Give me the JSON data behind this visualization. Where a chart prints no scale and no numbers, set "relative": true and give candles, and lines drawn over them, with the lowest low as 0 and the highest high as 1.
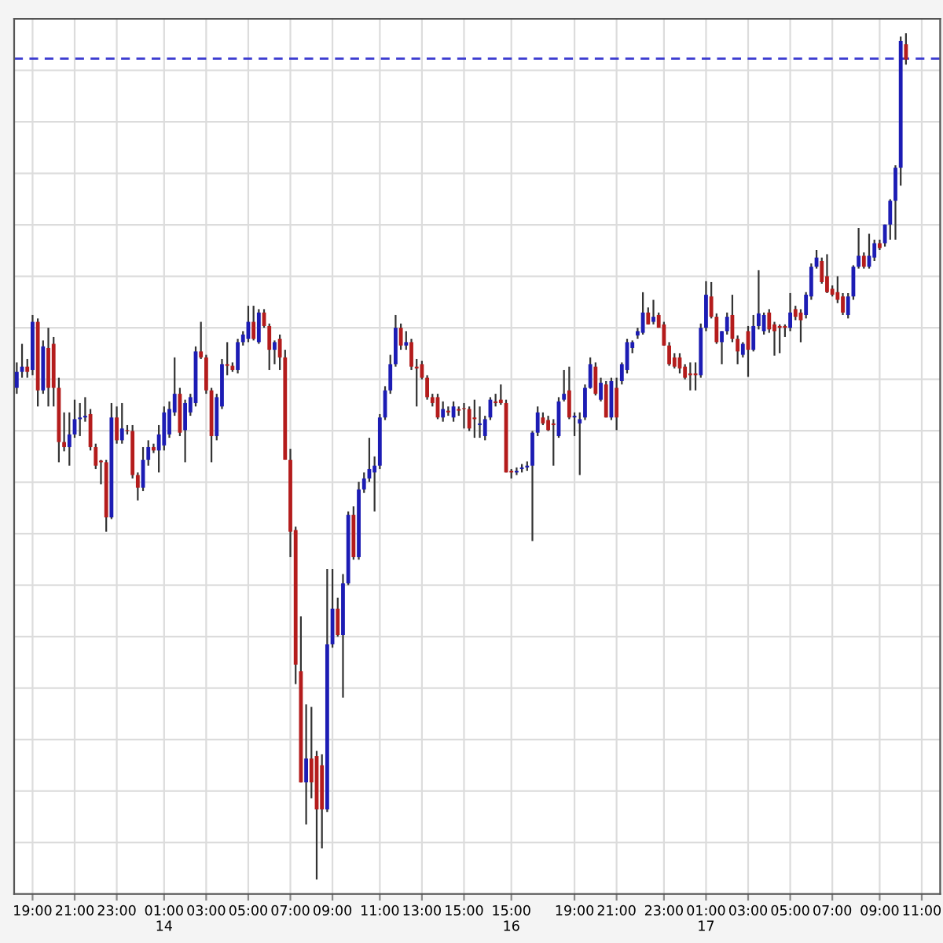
{
  "chart_data": {
    "type": "candlestick",
    "relative": true,
    "grid": true,
    "tick_labels": "x",
    "categories": [
      null,
      null,
      null,
      "19:00",
      null,
      null,
      null,
      null,
      null,
      null,
      null,
      "21:00",
      null,
      null,
      null,
      null,
      null,
      null,
      null,
      "23:00",
      null,
      null,
      null,
      null,
      null,
      null,
      null,
      null,
      "01:00\n14",
      null,
      null,
      null,
      null,
      null,
      null,
      null,
      "03:00",
      null,
      null,
      null,
      null,
      null,
      null,
      null,
      "05:00",
      null,
      null,
      null,
      null,
      null,
      null,
      null,
      "07:00",
      null,
      null,
      null,
      null,
      null,
      null,
      null,
      "09:00",
      null,
      null,
      null,
      null,
      null,
      null,
      null,
      null,
      "11:00",
      null,
      null,
      null,
      null,
      null,
      null,
      null,
      "13:00",
      null,
      null,
      null,
      null,
      null,
      null,
      null,
      "15:00",
      null,
      null,
      null,
      null,
      null,
      null,
      null,
      null,
      "15:00\n16",
      null,
      null,
      null,
      null,
      null,
      null,
      null,
      null,
      null,
      null,
      null,
      "19:00",
      null,
      null,
      null,
      null,
      null,
      null,
      null,
      "21:00",
      null,
      null,
      null,
      null,
      null,
      null,
      null,
      null,
      "23:00",
      null,
      null,
      null,
      null,
      null,
      null,
      null,
      "01:00\n17",
      null,
      null,
      null,
      null,
      null,
      null,
      null,
      "03:00",
      null,
      null,
      null,
      null,
      null,
      null,
      null,
      "05:00",
      null,
      null,
      null,
      null,
      null,
      null,
      null,
      "07:00",
      null,
      null,
      null,
      null,
      null,
      null,
      null,
      null,
      "09:00",
      null,
      null,
      null,
      null,
      null,
      null,
      null,
      "11:00",
      null,
      null,
      null
    ],
    "ohlc": [
      [
        0.581,
        0.611,
        0.574,
        0.6
      ],
      [
        0.6,
        0.633,
        0.593,
        0.606
      ],
      [
        0.606,
        0.615,
        0.593,
        0.6
      ],
      [
        0.602,
        0.667,
        0.596,
        0.659
      ],
      [
        0.659,
        0.663,
        0.559,
        0.578
      ],
      [
        0.578,
        0.637,
        0.574,
        0.63
      ],
      [
        0.628,
        0.652,
        0.559,
        0.581
      ],
      [
        0.633,
        0.641,
        0.559,
        0.581
      ],
      [
        0.581,
        0.593,
        0.493,
        0.517
      ],
      [
        0.517,
        0.552,
        0.506,
        0.511
      ],
      [
        0.511,
        0.552,
        0.489,
        0.526
      ],
      [
        0.526,
        0.567,
        0.522,
        0.544
      ],
      [
        0.544,
        0.563,
        0.524,
        0.546
      ],
      [
        0.546,
        0.57,
        0.541,
        0.548
      ],
      [
        0.55,
        0.556,
        0.507,
        0.511
      ],
      [
        0.511,
        0.515,
        0.485,
        0.489
      ],
      [
        0.493,
        0.496,
        0.467,
        0.493
      ],
      [
        0.493,
        0.496,
        0.411,
        0.428
      ],
      [
        0.428,
        0.563,
        0.426,
        0.546
      ],
      [
        0.546,
        0.559,
        0.515,
        0.519
      ],
      [
        0.519,
        0.563,
        0.515,
        0.533
      ],
      [
        0.531,
        0.537,
        0.526,
        0.53
      ],
      [
        0.53,
        0.537,
        0.474,
        0.478
      ],
      [
        0.478,
        0.481,
        0.448,
        0.463
      ],
      [
        0.463,
        0.511,
        0.459,
        0.496
      ],
      [
        0.496,
        0.519,
        0.489,
        0.511
      ],
      [
        0.511,
        0.515,
        0.504,
        0.507
      ],
      [
        0.507,
        0.537,
        0.481,
        0.526
      ],
      [
        0.513,
        0.559,
        0.507,
        0.552
      ],
      [
        0.526,
        0.565,
        0.522,
        0.556
      ],
      [
        0.552,
        0.617,
        0.548,
        0.574
      ],
      [
        0.574,
        0.581,
        0.524,
        0.528
      ],
      [
        0.531,
        0.567,
        0.493,
        0.563
      ],
      [
        0.552,
        0.574,
        0.548,
        0.57
      ],
      [
        0.563,
        0.63,
        0.559,
        0.624
      ],
      [
        0.624,
        0.659,
        0.615,
        0.617
      ],
      [
        0.617,
        0.62,
        0.574,
        0.578
      ],
      [
        0.578,
        0.581,
        0.493,
        0.524
      ],
      [
        0.524,
        0.574,
        0.519,
        0.57
      ],
      [
        0.559,
        0.615,
        0.556,
        0.609
      ],
      [
        0.609,
        0.635,
        0.596,
        0.607
      ],
      [
        0.607,
        0.611,
        0.6,
        0.602
      ],
      [
        0.602,
        0.639,
        0.598,
        0.635
      ],
      [
        0.635,
        0.648,
        0.631,
        0.644
      ],
      [
        0.639,
        0.678,
        0.635,
        0.659
      ],
      [
        0.659,
        0.678,
        0.637,
        0.639
      ],
      [
        0.635,
        0.674,
        0.633,
        0.67
      ],
      [
        0.67,
        0.674,
        0.652,
        0.654
      ],
      [
        0.654,
        0.657,
        0.602,
        0.626
      ],
      [
        0.626,
        0.637,
        0.609,
        0.635
      ],
      [
        0.639,
        0.644,
        0.602,
        0.617
      ],
      [
        0.617,
        0.626,
        0.496,
        0.496
      ],
      [
        0.496,
        0.509,
        0.381,
        0.411
      ],
      [
        0.413,
        0.417,
        0.231,
        0.254
      ],
      [
        0.246,
        0.311,
        0.115,
        0.115
      ],
      [
        0.115,
        0.207,
        0.065,
        0.143
      ],
      [
        0.143,
        0.204,
        0.096,
        0.115
      ],
      [
        0.146,
        0.152,
        0,
        0.083
      ],
      [
        0.135,
        0.148,
        0.037,
        0.083
      ],
      [
        0.083,
        0.367,
        0.08,
        0.278
      ],
      [
        0.278,
        0.367,
        0.274,
        0.32
      ],
      [
        0.32,
        0.333,
        0.287,
        0.289
      ],
      [
        0.289,
        0.361,
        0.215,
        0.35
      ],
      [
        0.35,
        0.435,
        0.348,
        0.431
      ],
      [
        0.431,
        0.441,
        0.378,
        0.381
      ],
      [
        0.381,
        0.47,
        0.378,
        0.461
      ],
      [
        0.461,
        0.481,
        0.457,
        0.474
      ],
      [
        0.474,
        0.522,
        0.47,
        0.485
      ],
      [
        0.481,
        0.5,
        0.435,
        0.489
      ],
      [
        0.489,
        0.55,
        0.485,
        0.546
      ],
      [
        0.546,
        0.583,
        0.543,
        0.578
      ],
      [
        0.578,
        0.62,
        0.574,
        0.609
      ],
      [
        0.609,
        0.667,
        0.606,
        0.652
      ],
      [
        0.652,
        0.657,
        0.626,
        0.631
      ],
      [
        0.631,
        0.648,
        0.626,
        0.635
      ],
      [
        0.635,
        0.639,
        0.602,
        0.606
      ],
      [
        0.606,
        0.615,
        0.559,
        0.604
      ],
      [
        0.609,
        0.613,
        0.591,
        0.593
      ],
      [
        0.593,
        0.596,
        0.567,
        0.57
      ],
      [
        0.57,
        0.574,
        0.559,
        0.563
      ],
      [
        0.57,
        0.574,
        0.544,
        0.546
      ],
      [
        0.546,
        0.565,
        0.541,
        0.556
      ],
      [
        0.552,
        0.559,
        0.548,
        0.552
      ],
      [
        0.546,
        0.565,
        0.541,
        0.559
      ],
      [
        0.556,
        0.559,
        0.548,
        0.554
      ],
      [
        0.557,
        0.563,
        0.533,
        0.556
      ],
      [
        0.556,
        0.559,
        0.53,
        0.533
      ],
      [
        0.544,
        0.567,
        0.522,
        0.544
      ],
      [
        0.537,
        0.559,
        0.522,
        0.539
      ],
      [
        0.524,
        0.548,
        0.519,
        0.544
      ],
      [
        0.546,
        0.57,
        0.543,
        0.567
      ],
      [
        0.563,
        0.574,
        0.559,
        0.563
      ],
      [
        0.567,
        0.585,
        0.561,
        0.563
      ],
      [
        0.563,
        0.567,
        0.481,
        0.481
      ],
      [
        0.481,
        0.485,
        0.474,
        0.481
      ],
      [
        0.481,
        0.487,
        0.478,
        0.483
      ],
      [
        0.485,
        0.491,
        0.481,
        0.487
      ],
      [
        0.487,
        0.494,
        0.483,
        0.489
      ],
      [
        0.489,
        0.53,
        0.4,
        0.528
      ],
      [
        0.528,
        0.559,
        0.524,
        0.552
      ],
      [
        0.546,
        0.552,
        0.537,
        0.539
      ],
      [
        0.543,
        0.548,
        0.53,
        0.531
      ],
      [
        0.539,
        0.544,
        0.489,
        0.537
      ],
      [
        0.524,
        0.57,
        0.522,
        0.565
      ],
      [
        0.567,
        0.602,
        0.565,
        0.574
      ],
      [
        0.578,
        0.606,
        0.544,
        0.546
      ],
      [
        0.546,
        0.552,
        0.524,
        0.548
      ],
      [
        0.539,
        0.552,
        0.478,
        0.544
      ],
      [
        0.546,
        0.585,
        0.543,
        0.581
      ],
      [
        0.581,
        0.617,
        0.58,
        0.609
      ],
      [
        0.606,
        0.611,
        0.572,
        0.574
      ],
      [
        0.567,
        0.593,
        0.565,
        0.587
      ],
      [
        0.585,
        0.589,
        0.546,
        0.546
      ],
      [
        0.546,
        0.593,
        0.543,
        0.589
      ],
      [
        0.581,
        0.593,
        0.531,
        0.546
      ],
      [
        0.589,
        0.611,
        0.585,
        0.609
      ],
      [
        0.602,
        0.639,
        0.598,
        0.635
      ],
      [
        0.628,
        0.637,
        0.622,
        0.635
      ],
      [
        0.643,
        0.652,
        0.639,
        0.648
      ],
      [
        0.646,
        0.694,
        0.644,
        0.67
      ],
      [
        0.67,
        0.676,
        0.656,
        0.656
      ],
      [
        0.659,
        0.685,
        0.656,
        0.665
      ],
      [
        0.667,
        0.67,
        0.652,
        0.652
      ],
      [
        0.656,
        0.659,
        0.631,
        0.631
      ],
      [
        0.631,
        0.635,
        0.607,
        0.609
      ],
      [
        0.617,
        0.622,
        0.604,
        0.606
      ],
      [
        0.617,
        0.622,
        0.598,
        0.604
      ],
      [
        0.606,
        0.609,
        0.591,
        0.593
      ],
      [
        0.596,
        0.611,
        0.578,
        0.596
      ],
      [
        0.596,
        0.611,
        0.578,
        0.596
      ],
      [
        0.596,
        0.657,
        0.593,
        0.652
      ],
      [
        0.652,
        0.707,
        0.648,
        0.691
      ],
      [
        0.689,
        0.706,
        0.663,
        0.665
      ],
      [
        0.665,
        0.669,
        0.633,
        0.635
      ],
      [
        0.635,
        0.648,
        0.609,
        0.648
      ],
      [
        0.648,
        0.67,
        0.644,
        0.665
      ],
      [
        0.667,
        0.691,
        0.635,
        0.639
      ],
      [
        0.639,
        0.643,
        0.609,
        0.624
      ],
      [
        0.62,
        0.635,
        0.617,
        0.633
      ],
      [
        0.648,
        0.654,
        0.594,
        0.626
      ],
      [
        0.626,
        0.667,
        0.624,
        0.654
      ],
      [
        0.654,
        0.72,
        0.65,
        0.669
      ],
      [
        0.648,
        0.67,
        0.644,
        0.667
      ],
      [
        0.67,
        0.674,
        0.646,
        0.65
      ],
      [
        0.656,
        0.659,
        0.619,
        0.648
      ],
      [
        0.652,
        0.656,
        0.622,
        0.652
      ],
      [
        0.652,
        0.656,
        0.641,
        0.652
      ],
      [
        0.652,
        0.693,
        0.648,
        0.67
      ],
      [
        0.674,
        0.678,
        0.661,
        0.665
      ],
      [
        0.67,
        0.674,
        0.635,
        0.661
      ],
      [
        0.667,
        0.694,
        0.663,
        0.691
      ],
      [
        0.689,
        0.728,
        0.685,
        0.724
      ],
      [
        0.724,
        0.744,
        0.722,
        0.735
      ],
      [
        0.731,
        0.735,
        0.704,
        0.706
      ],
      [
        0.713,
        0.739,
        0.693,
        0.694
      ],
      [
        0.698,
        0.702,
        0.689,
        0.691
      ],
      [
        0.694,
        0.713,
        0.681,
        0.685
      ],
      [
        0.689,
        0.693,
        0.667,
        0.67
      ],
      [
        0.667,
        0.693,
        0.663,
        0.689
      ],
      [
        0.689,
        0.726,
        0.685,
        0.724
      ],
      [
        0.724,
        0.77,
        0.722,
        0.737
      ],
      [
        0.737,
        0.741,
        0.722,
        0.724
      ],
      [
        0.724,
        0.763,
        0.722,
        0.737
      ],
      [
        0.735,
        0.756,
        0.731,
        0.752
      ],
      [
        0.752,
        0.756,
        0.744,
        0.746
      ],
      [
        0.752,
        0.774,
        0.748,
        0.774
      ],
      [
        0.774,
        0.804,
        0.756,
        0.802
      ],
      [
        0.802,
        0.844,
        0.756,
        0.841
      ],
      [
        0.841,
        0.996,
        0.82,
        0.991
      ],
      [
        0.987,
        1.0,
        0.963,
        0.969
      ],
      null,
      null,
      null,
      null,
      null,
      null
    ],
    "colors": [
      "#1c1cb4",
      "#1c1cb4",
      "#b41c1c",
      "#1c1cb4",
      "#b41c1c",
      "#1c1cb4",
      "#b41c1c",
      "#b41c1c",
      "#b41c1c",
      "#b41c1c",
      "#1c1cb4",
      "#1c1cb4",
      "#1c1cb4",
      "#1c1cb4",
      "#b41c1c",
      "#b41c1c",
      "#b41c1c",
      "#b41c1c",
      "#1c1cb4",
      "#b41c1c",
      "#1c1cb4",
      "#b41c1c",
      "#b41c1c",
      "#b41c1c",
      "#1c1cb4",
      "#1c1cb4",
      "#b41c1c",
      "#1c1cb4",
      "#1c1cb4",
      "#1c1cb4",
      "#1c1cb4",
      "#b41c1c",
      "#1c1cb4",
      "#1c1cb4",
      "#1c1cb4",
      "#b41c1c",
      "#b41c1c",
      "#b41c1c",
      "#1c1cb4",
      "#1c1cb4",
      "#b41c1c",
      "#b41c1c",
      "#1c1cb4",
      "#1c1cb4",
      "#1c1cb4",
      "#b41c1c",
      "#1c1cb4",
      "#b41c1c",
      "#b41c1c",
      "#1c1cb4",
      "#b41c1c",
      "#b41c1c",
      "#b41c1c",
      "#b41c1c",
      "#b41c1c",
      "#1c1cb4",
      "#b41c1c",
      "#b41c1c",
      "#b41c1c",
      "#1c1cb4",
      "#1c1cb4",
      "#b41c1c",
      "#1c1cb4",
      "#1c1cb4",
      "#b41c1c",
      "#1c1cb4",
      "#1c1cb4",
      "#1c1cb4",
      "#1c1cb4",
      "#1c1cb4",
      "#1c1cb4",
      "#1c1cb4",
      "#1c1cb4",
      "#b41c1c",
      "#1c1cb4",
      "#b41c1c",
      "#b41c1c",
      "#b41c1c",
      "#b41c1c",
      "#b41c1c",
      "#b41c1c",
      "#1c1cb4",
      "#b41c1c",
      "#1c1cb4",
      "#b41c1c",
      "#b41c1c",
      "#b41c1c",
      "#b41c1c",
      "#1c1cb4",
      "#1c1cb4",
      "#1c1cb4",
      "#b41c1c",
      "#b41c1c",
      "#b41c1c",
      "#b41c1c",
      "#1c1cb4",
      "#1c1cb4",
      "#1c1cb4",
      "#1c1cb4",
      "#1c1cb4",
      "#b41c1c",
      "#b41c1c",
      "#b41c1c",
      "#1c1cb4",
      "#1c1cb4",
      "#b41c1c",
      "#1c1cb4",
      "#1c1cb4",
      "#1c1cb4",
      "#1c1cb4",
      "#b41c1c",
      "#1c1cb4",
      "#b41c1c",
      "#1c1cb4",
      "#b41c1c",
      "#1c1cb4",
      "#1c1cb4",
      "#1c1cb4",
      "#1c1cb4",
      "#1c1cb4",
      "#b41c1c",
      "#1c1cb4",
      "#b41c1c",
      "#b41c1c",
      "#b41c1c",
      "#b41c1c",
      "#b41c1c",
      "#b41c1c",
      "#b41c1c",
      "#b41c1c",
      "#1c1cb4",
      "#1c1cb4",
      "#b41c1c",
      "#b41c1c",
      "#1c1cb4",
      "#1c1cb4",
      "#b41c1c",
      "#b41c1c",
      "#1c1cb4",
      "#b41c1c",
      "#1c1cb4",
      "#1c1cb4",
      "#1c1cb4",
      "#b41c1c",
      "#b41c1c",
      "#b41c1c",
      "#b41c1c",
      "#1c1cb4",
      "#b41c1c",
      "#b41c1c",
      "#1c1cb4",
      "#1c1cb4",
      "#1c1cb4",
      "#b41c1c",
      "#b41c1c",
      "#b41c1c",
      "#b41c1c",
      "#b41c1c",
      "#1c1cb4",
      "#1c1cb4",
      "#1c1cb4",
      "#b41c1c",
      "#1c1cb4",
      "#1c1cb4",
      "#b41c1c",
      "#1c1cb4",
      "#1c1cb4",
      "#1c1cb4",
      "#1c1cb4",
      "#b41c1c",
      null,
      null,
      null,
      null,
      null,
      null
    ],
    "ref_lines": [
      {
        "axis": "y",
        "value": 0.97,
        "color": "#3a3ad0",
        "line_style": "dashed"
      }
    ]
  }
}
